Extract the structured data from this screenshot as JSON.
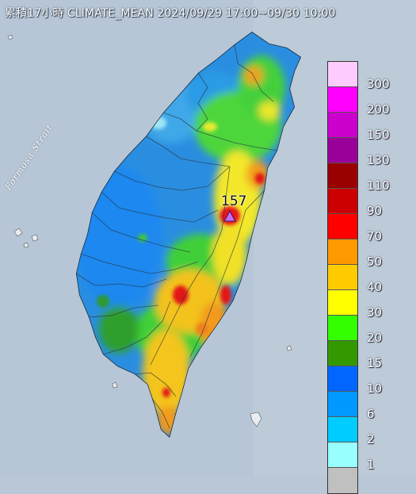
{
  "title": "累積17小時 CLIMATE_MEAN 2024/09/29 17:00~09/30 10:00",
  "sea_label": "Formosa Strait",
  "max_marker": {
    "value": "157"
  },
  "legend": [
    {
      "label": "300",
      "color": "#ffccff"
    },
    {
      "label": "200",
      "color": "#ff00ff"
    },
    {
      "label": "150",
      "color": "#cc00cc"
    },
    {
      "label": "130",
      "color": "#990099"
    },
    {
      "label": "110",
      "color": "#990000"
    },
    {
      "label": "90",
      "color": "#cc0000"
    },
    {
      "label": "70",
      "color": "#ff0000"
    },
    {
      "label": "50",
      "color": "#ff9900"
    },
    {
      "label": "40",
      "color": "#ffcc00"
    },
    {
      "label": "30",
      "color": "#ffff00"
    },
    {
      "label": "20",
      "color": "#33ff00"
    },
    {
      "label": "15",
      "color": "#339900"
    },
    {
      "label": "10",
      "color": "#0066ff"
    },
    {
      "label": "6",
      "color": "#0099ff"
    },
    {
      "label": "2",
      "color": "#00ccff"
    },
    {
      "label": "1",
      "color": "#99ffff"
    },
    {
      "label": "",
      "color": "#c0c0c0"
    }
  ]
}
